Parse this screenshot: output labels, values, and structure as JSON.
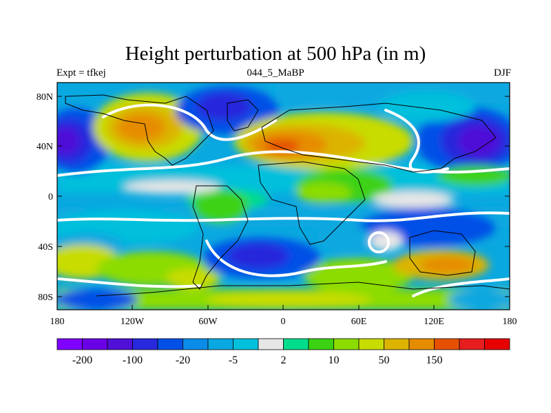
{
  "header": {
    "title": "Height perturbation at 500 hPa (in m)",
    "left_label": "Expt = tfkej",
    "center_label": "044_5_MaBP",
    "right_label": "DJF"
  },
  "map": {
    "lat_labels": [
      "80N",
      "40N",
      "0",
      "40S",
      "80S"
    ],
    "lon_labels": [
      "180",
      "120W",
      "60W",
      "0",
      "60E",
      "120E",
      "180"
    ]
  },
  "colorbar": {
    "colors": [
      "#7f00ff",
      "#6a00e6",
      "#5010d8",
      "#2828dc",
      "#0050e6",
      "#0a8ce8",
      "#0aa8e0",
      "#00c0dc",
      "#e6e6e6",
      "#00dc8c",
      "#3cd214",
      "#8cdc00",
      "#c8dc00",
      "#dcb400",
      "#e68c00",
      "#e65000",
      "#e61e1e",
      "#e60000"
    ],
    "labels": [
      "-200",
      "-100",
      "-20",
      "-5",
      "2",
      "10",
      "50",
      "150"
    ],
    "label_after_box": [
      1,
      3,
      5,
      7,
      9,
      11,
      13,
      15
    ]
  },
  "colors": {
    "land_outline": "#000000",
    "background_field": "#0aa8e0"
  }
}
